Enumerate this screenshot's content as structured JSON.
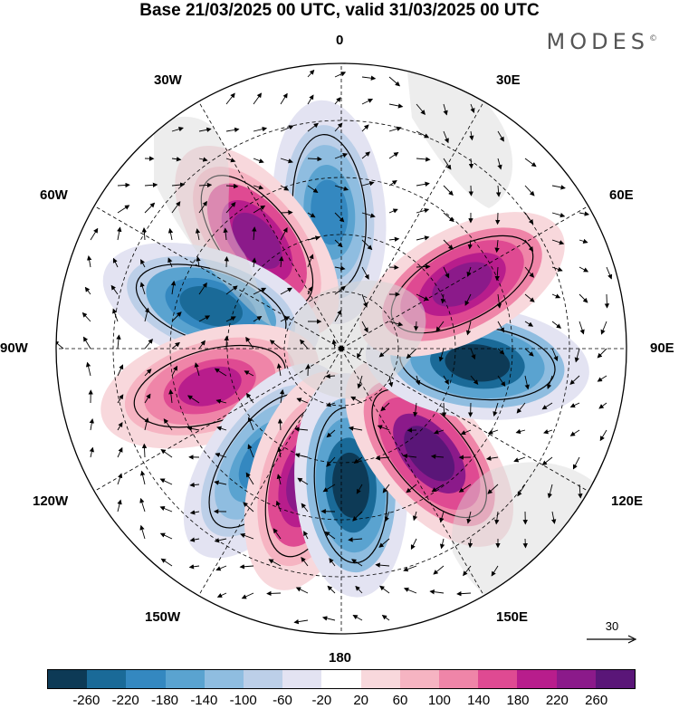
{
  "header": {
    "title": "Base 21/03/2025 00 UTC, valid 31/03/2025 00 UTC",
    "brand": "MODES",
    "brand_mark": "©"
  },
  "map": {
    "projection": "south-polar-stereographic",
    "longitude_labels": {
      "top": "0",
      "top_right": "30E",
      "upper_right": "60E",
      "right": "90E",
      "lower_right": "120E",
      "bottom_right": "150E",
      "bottom": "180",
      "bottom_left": "150W",
      "lower_left": "120W",
      "left": "90W",
      "upper_left": "60W",
      "top_left": "30W"
    },
    "anomaly_centers": [
      {
        "name": "neg-atlantic",
        "lon": -5,
        "value": -180
      },
      {
        "name": "pos-southamerica",
        "lon": -38,
        "value": 240
      },
      {
        "name": "neg-pacific-west",
        "lon": -72,
        "value": -240
      },
      {
        "name": "pos-pacific-1",
        "lon": -106,
        "value": 200
      },
      {
        "name": "neg-pacific-2",
        "lon": -145,
        "value": -180
      },
      {
        "name": "pos-ross",
        "lon": -165,
        "value": 240
      },
      {
        "name": "neg-ross",
        "lon": 176,
        "value": -280
      },
      {
        "name": "pos-australia",
        "lon": 140,
        "value": 280
      },
      {
        "name": "neg-indian-east",
        "lon": 96,
        "value": -280
      },
      {
        "name": "pos-indian",
        "lon": 62,
        "value": 260
      }
    ],
    "vector_scale_label": "30"
  },
  "colorbar": {
    "colors": [
      "#0d3a56",
      "#1a6a98",
      "#3488c0",
      "#5aa3d0",
      "#8fbde0",
      "#bccfe8",
      "#e3e3f2",
      "#ffffff",
      "#f8d8dc",
      "#f6b4c2",
      "#ef85a8",
      "#df4a92",
      "#b81d8c",
      "#8b1a8a",
      "#5a1678"
    ],
    "tick_labels": [
      "-260",
      "-220",
      "-180",
      "-140",
      "-100",
      "-60",
      "-20",
      "20",
      "60",
      "100",
      "140",
      "180",
      "220",
      "260"
    ]
  }
}
